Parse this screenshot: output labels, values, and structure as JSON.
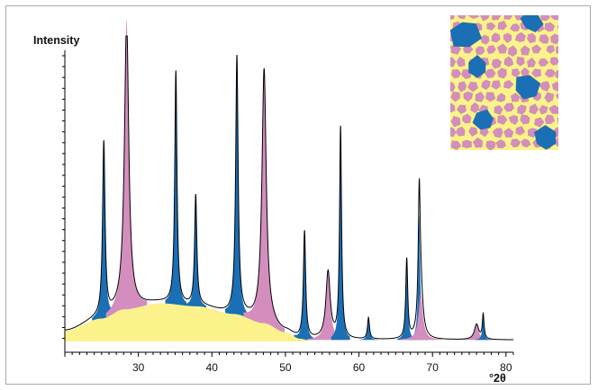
{
  "chart_data": {
    "type": "line",
    "title": "",
    "ylabel": "Intensity",
    "xlabel": "°2θ",
    "xlim": [
      20,
      81
    ],
    "ylim": [
      0,
      1
    ],
    "x_ticks": [
      30,
      40,
      50,
      60,
      70,
      80
    ],
    "y_tick_labels": false,
    "grid": false,
    "legend": "none",
    "colors": {
      "amorphous_fill": "#fbf28c",
      "phase_a_fill": "#1a6fb5",
      "phase_b_fill": "#d48ebe",
      "line": "#000000",
      "frame": "#a8a8a8"
    },
    "background": {
      "name": "amorphous hump",
      "points": [
        [
          20,
          0.03
        ],
        [
          25,
          0.07
        ],
        [
          28,
          0.1
        ],
        [
          33,
          0.12
        ],
        [
          38,
          0.11
        ],
        [
          43,
          0.085
        ],
        [
          47,
          0.055
        ],
        [
          50,
          0.025
        ],
        [
          52,
          0.004
        ],
        [
          53,
          0.0
        ]
      ]
    },
    "baseline": 0.005,
    "peaks": [
      {
        "x": 25.3,
        "height": 0.57,
        "phase": "A",
        "width": 0.2
      },
      {
        "x": 28.4,
        "height": 0.95,
        "phase": "B",
        "width": 0.35
      },
      {
        "x": 35.1,
        "height": 0.76,
        "phase": "A",
        "width": 0.18
      },
      {
        "x": 37.8,
        "height": 0.36,
        "phase": "A",
        "width": 0.18
      },
      {
        "x": 43.4,
        "height": 0.84,
        "phase": "A",
        "width": 0.2
      },
      {
        "x": 47.1,
        "height": 0.83,
        "phase": "B",
        "width": 0.35
      },
      {
        "x": 52.6,
        "height": 0.35,
        "phase": "A",
        "width": 0.18
      },
      {
        "x": 55.8,
        "height": 0.22,
        "phase": "B",
        "width": 0.35
      },
      {
        "x": 57.5,
        "height": 0.69,
        "phase": "A",
        "width": 0.16
      },
      {
        "x": 61.3,
        "height": 0.07,
        "phase": "A",
        "width": 0.16
      },
      {
        "x": 66.5,
        "height": 0.26,
        "phase": "A",
        "width": 0.16
      },
      {
        "x": 68.2,
        "height": 0.41,
        "phase": "A",
        "width": 0.16
      },
      {
        "x": 68.4,
        "height": 0.15,
        "phase": "B",
        "width": 0.35
      },
      {
        "x": 76.0,
        "height": 0.05,
        "phase": "B",
        "width": 0.35
      },
      {
        "x": 76.9,
        "height": 0.08,
        "phase": "A",
        "width": 0.14
      }
    ]
  }
}
